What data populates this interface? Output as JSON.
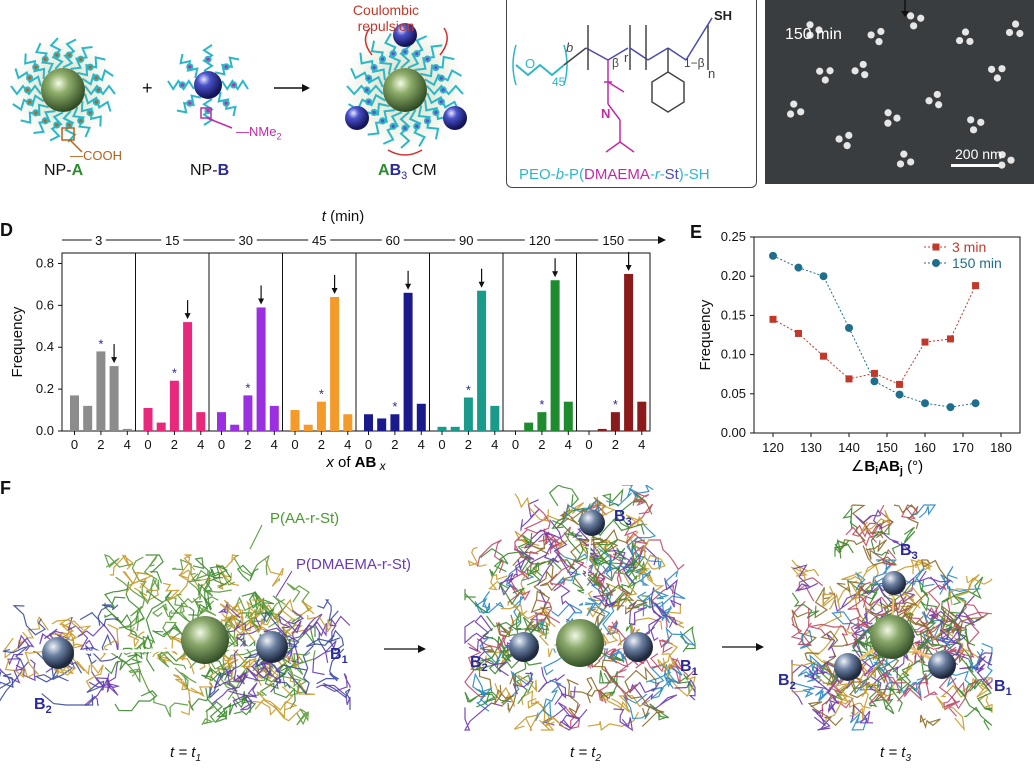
{
  "panelA": {
    "coulombic": "Coulombic repulsion",
    "np_a": "NP-",
    "np_a_letter": "A",
    "np_b": "NP-",
    "np_b_letter": "B",
    "cooh": "COOH",
    "nme2": "NMe",
    "nme2_sub": "2",
    "cm_a": "A",
    "cm_b": "B",
    "cm_sub": "3",
    "cm_rest": " CM",
    "plus": "+",
    "arrow": "→"
  },
  "panelB": {
    "polymer_name_prefix": "PEO-",
    "polymer_name_b": "b",
    "polymer_name_mid": "-P(",
    "polymer_name_dmaema": "DMAEMA",
    "polymer_name_r": "-r-",
    "polymer_name_st": "St",
    "polymer_name_suffix": ")-SH",
    "sh": "SH",
    "n45": "45",
    "r": "r",
    "beta": "β",
    "one_minus_beta": "1−β",
    "n": "n",
    "b_label": "b",
    "o": "O",
    "n_atom": "N"
  },
  "panelC": {
    "time": "150 min",
    "scale": "200 nm"
  },
  "panelD": {
    "letter": "D",
    "t_label": "t (min)",
    "ylabel": "Frequency",
    "xlabel_x": "x",
    "xlabel_mid": " of ",
    "xlabel_ab": "AB",
    "xlabel_sub": "x"
  },
  "panelE": {
    "letter": "E"
  },
  "panelF": {
    "letter": "F",
    "paa": "P(AA-r-St)",
    "pdmaema": "P(DMAEMA-r-St)",
    "b1": "B",
    "b2": "B",
    "b3": "B",
    "sub1": "1",
    "sub2": "2",
    "sub3": "3",
    "t1": "t = t",
    "t1sub": "1",
    "t2": "t = t",
    "t2sub": "2",
    "t3": "t = t",
    "t3sub": "3"
  },
  "chart_data": [
    {
      "type": "bar",
      "panel": "D",
      "ylabel": "Frequency",
      "xlabel": "x of AB x",
      "ylim": [
        0,
        0.85
      ],
      "yticks": [
        0.0,
        0.2,
        0.4,
        0.6,
        0.8
      ],
      "groups": [
        {
          "t": "3",
          "color": "#8c8c8c",
          "x": [
            0,
            1,
            2,
            3,
            4
          ],
          "values": [
            0.17,
            0.12,
            0.38,
            0.31,
            0.01
          ],
          "star_index": 2,
          "arrow_index": 3
        },
        {
          "t": "15",
          "color": "#e8287a",
          "x": [
            0,
            1,
            2,
            3,
            4
          ],
          "values": [
            0.11,
            0.04,
            0.24,
            0.52,
            0.09
          ],
          "star_index": 2,
          "arrow_index": 3
        },
        {
          "t": "30",
          "color": "#9b30e0",
          "x": [
            0,
            1,
            2,
            3,
            4
          ],
          "values": [
            0.09,
            0.03,
            0.17,
            0.59,
            0.12
          ],
          "star_index": 2,
          "arrow_index": 3
        },
        {
          "t": "45",
          "color": "#f39a2b",
          "x": [
            0,
            1,
            2,
            3,
            4
          ],
          "values": [
            0.1,
            0.03,
            0.14,
            0.64,
            0.08
          ],
          "star_index": 2,
          "arrow_index": 3
        },
        {
          "t": "60",
          "color": "#1a1a8c",
          "x": [
            0,
            1,
            2,
            3,
            4
          ],
          "values": [
            0.08,
            0.06,
            0.08,
            0.66,
            0.13
          ],
          "star_index": 2,
          "arrow_index": 3
        },
        {
          "t": "90",
          "color": "#1a9a8a",
          "x": [
            0,
            1,
            2,
            3,
            4
          ],
          "values": [
            0.02,
            0.02,
            0.16,
            0.67,
            0.12
          ],
          "star_index": 2,
          "arrow_index": 3
        },
        {
          "t": "120",
          "color": "#1e8c2e",
          "x": [
            0,
            1,
            2,
            3,
            4
          ],
          "values": [
            0.0,
            0.04,
            0.09,
            0.72,
            0.14
          ],
          "star_index": 2,
          "arrow_index": 3
        },
        {
          "t": "150",
          "color": "#8b1a1a",
          "x": [
            0,
            1,
            2,
            3,
            4
          ],
          "values": [
            0.0,
            0.01,
            0.09,
            0.75,
            0.14
          ],
          "star_index": 2,
          "arrow_index": 3
        }
      ],
      "tick_labels": [
        "0",
        "2",
        "4"
      ]
    },
    {
      "type": "line",
      "panel": "E",
      "ylabel": "Frequency",
      "xlabel": "∠B_iAB_j (°)",
      "xlabel_main": "∠",
      "xlabel_b": "B",
      "xlabel_i": "i",
      "xlabel_ab": "AB",
      "xlabel_j": "j",
      "xlabel_unit": " (°)",
      "xlim": [
        115,
        185
      ],
      "ylim": [
        0.0,
        0.25
      ],
      "xticks": [
        120,
        130,
        140,
        150,
        160,
        170,
        180
      ],
      "yticks": [
        0.0,
        0.05,
        0.1,
        0.15,
        0.2,
        0.25
      ],
      "legend": "top-right",
      "series": [
        {
          "name": "3 min",
          "color": "#c0392b",
          "marker": "square",
          "x": [
            120,
            126.7,
            133.3,
            140,
            146.7,
            153.3,
            160,
            166.7,
            173.3
          ],
          "y": [
            0.145,
            0.127,
            0.098,
            0.069,
            0.076,
            0.062,
            0.116,
            0.12,
            0.188
          ]
        },
        {
          "name": "150 min",
          "color": "#1f6e8c",
          "marker": "circle",
          "x": [
            120,
            126.7,
            133.3,
            140,
            146.7,
            153.3,
            160,
            166.7,
            173.3
          ],
          "y": [
            0.226,
            0.211,
            0.2,
            0.134,
            0.066,
            0.049,
            0.038,
            0.033,
            0.038
          ]
        }
      ]
    }
  ]
}
